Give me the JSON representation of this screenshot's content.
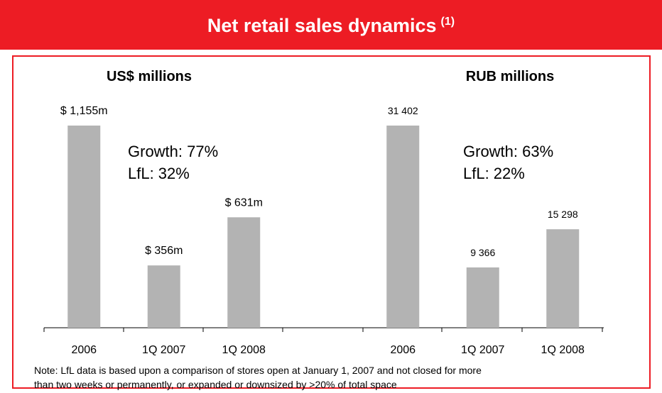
{
  "title": "Net retail sales dynamics",
  "title_superscript": "(1)",
  "chart_data": [
    {
      "type": "bar",
      "title": "US$ millions",
      "categories": [
        "2006",
        "1Q 2007",
        "1Q 2008"
      ],
      "values": [
        1155,
        356,
        631
      ],
      "value_labels": [
        "$ 1,155m",
        "$ 356m",
        "$ 631m"
      ],
      "color": "#b3b3b3",
      "annotations": [
        "Growth: 77%",
        "LfL: 32%"
      ]
    },
    {
      "type": "bar",
      "title": "RUB millions",
      "categories": [
        "2006",
        "1Q 2007",
        "1Q 2008"
      ],
      "values": [
        31402,
        9366,
        15298
      ],
      "value_labels": [
        "31 402",
        "9 366",
        "15 298"
      ],
      "color": "#b3b3b3",
      "annotations": [
        "Growth: 63%",
        "LfL: 22%"
      ]
    }
  ],
  "note": [
    "Note: LfL data is based upon a comparison of stores open at January 1, 2007 and not closed for more",
    "than two weeks or permanently, or expanded or downsized by >20% of total space"
  ]
}
